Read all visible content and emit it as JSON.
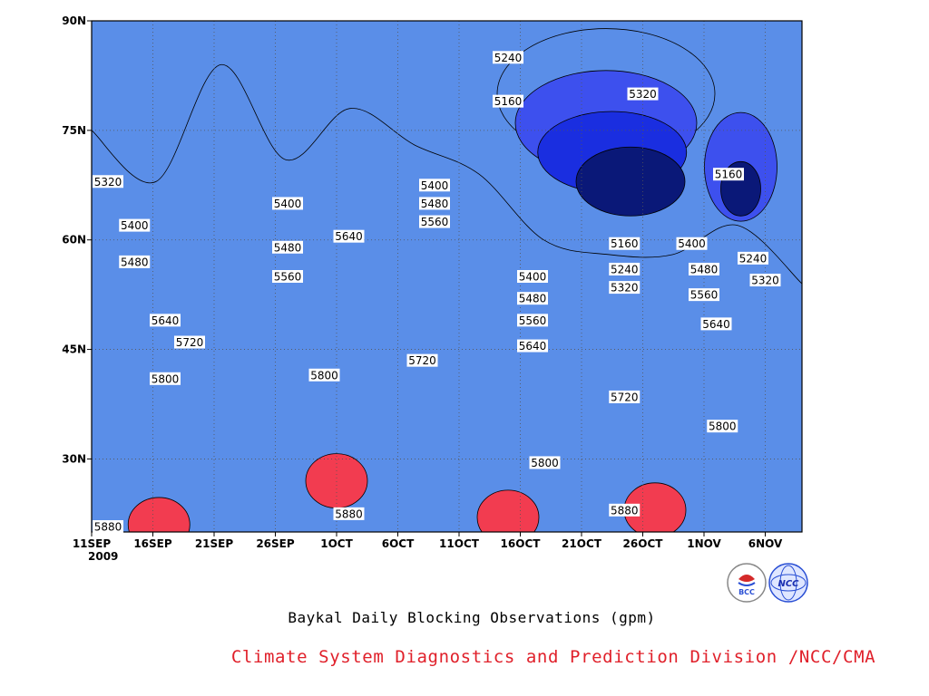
{
  "chart_data": {
    "type": "heatmap",
    "title": "Baykal Daily Blocking Observations (gpm)",
    "x_tick_labels": [
      "11SEP",
      "16SEP",
      "21SEP",
      "26SEP",
      "1OCT",
      "6OCT",
      "11OCT",
      "16OCT",
      "21OCT",
      "26OCT",
      "1NOV",
      "6NOV"
    ],
    "x_year_label": "2009",
    "y_tick_labels": [
      "30N",
      "45N",
      "60N",
      "75N",
      "90N"
    ],
    "y_ticks": [
      30,
      45,
      60,
      75,
      90
    ],
    "ylim": [
      20,
      90
    ],
    "x_range_days": [
      0,
      58
    ],
    "contour_levels": [
      5160,
      5240,
      5320,
      5400,
      5480,
      5560,
      5640,
      5720,
      5800,
      5880
    ],
    "level_colors": [
      "#0a1878",
      "#1a2ee0",
      "#3d50ee",
      "#5a8ee8",
      "#68c2ff",
      "#fbfb7c",
      "#fde0a2",
      "#fca068",
      "#fc7b48",
      "#f66c7e",
      "#f23c50"
    ],
    "isoline_latitudes": [
      {
        "level": 5880,
        "values": [
          20,
          20,
          20,
          20,
          20,
          20,
          20,
          20,
          20,
          20,
          20,
          20
        ]
      },
      {
        "level": 5800,
        "values": [
          42.5,
          41.5,
          40.5,
          41.5,
          41.5,
          40,
          31,
          31,
          29,
          32,
          36,
          26
        ]
      },
      {
        "level": 5720,
        "values": [
          48,
          46,
          45.5,
          47,
          49,
          47,
          44,
          42,
          40.5,
          40,
          43,
          34
        ]
      },
      {
        "level": 5640,
        "values": [
          57,
          52,
          51,
          53,
          61,
          60,
          51,
          47,
          45,
          45,
          49,
          40
        ]
      },
      {
        "level": 5560,
        "values": [
          62,
          55,
          56,
          55,
          64,
          63,
          56,
          50,
          48,
          48,
          51,
          43
        ]
      },
      {
        "level": 5480,
        "values": [
          64,
          54,
          77,
          59,
          68,
          64,
          58,
          53,
          50,
          50,
          53,
          46
        ]
      },
      {
        "level": 5400,
        "values": [
          66,
          61,
          79,
          63,
          73,
          68,
          63,
          55,
          53,
          51,
          59,
          47
        ]
      },
      {
        "level": 5320,
        "values": [
          75,
          68,
          84,
          71,
          78,
          73,
          69,
          60,
          58,
          58,
          62,
          54
        ]
      }
    ],
    "closed_regions": [
      {
        "level": "5880",
        "center": [
          5.5,
          21
        ],
        "value_label": "5880"
      },
      {
        "level": "5880",
        "center": [
          20,
          27
        ],
        "value_label": "5880"
      },
      {
        "level": "5880",
        "center": [
          34,
          22
        ],
        "value_label": "5880"
      },
      {
        "level": "5880",
        "center": [
          46,
          23
        ],
        "value_label": "5880"
      },
      {
        "level": "5160",
        "center": [
          44,
          68
        ],
        "value_label": "5160"
      },
      {
        "level": "5160",
        "center": [
          53,
          67
        ],
        "value_label": "5160"
      }
    ],
    "contour_labels": [
      {
        "text": "5320",
        "day": 1,
        "lat": 68
      },
      {
        "text": "5400",
        "day": 3.5,
        "lat": 62
      },
      {
        "text": "5480",
        "day": 3.5,
        "lat": 57
      },
      {
        "text": "5400",
        "day": 16,
        "lat": 65
      },
      {
        "text": "5480",
        "day": 16,
        "lat": 59
      },
      {
        "text": "5560",
        "day": 16,
        "lat": 55
      },
      {
        "text": "5640",
        "day": 21,
        "lat": 60.5
      },
      {
        "text": "5400",
        "day": 28,
        "lat": 67.5
      },
      {
        "text": "5480",
        "day": 28,
        "lat": 65
      },
      {
        "text": "5560",
        "day": 28,
        "lat": 62.5
      },
      {
        "text": "5240",
        "day": 34,
        "lat": 85
      },
      {
        "text": "5160",
        "day": 34,
        "lat": 79
      },
      {
        "text": "5320",
        "day": 45,
        "lat": 80
      },
      {
        "text": "5400",
        "day": 36,
        "lat": 55
      },
      {
        "text": "5480",
        "day": 36,
        "lat": 52
      },
      {
        "text": "5560",
        "day": 36,
        "lat": 49
      },
      {
        "text": "5640",
        "day": 36,
        "lat": 45.5
      },
      {
        "text": "5160",
        "day": 43.5,
        "lat": 59.5
      },
      {
        "text": "5240",
        "day": 43.5,
        "lat": 56
      },
      {
        "text": "5320",
        "day": 43.5,
        "lat": 53.5
      },
      {
        "text": "5400",
        "day": 49,
        "lat": 59.5
      },
      {
        "text": "5480",
        "day": 50,
        "lat": 56
      },
      {
        "text": "5560",
        "day": 50,
        "lat": 52.5
      },
      {
        "text": "5640",
        "day": 51,
        "lat": 48.5
      },
      {
        "text": "5160",
        "day": 52,
        "lat": 69
      },
      {
        "text": "5240",
        "day": 54,
        "lat": 57.5
      },
      {
        "text": "5320",
        "day": 55,
        "lat": 54.5
      },
      {
        "text": "5640",
        "day": 6,
        "lat": 49
      },
      {
        "text": "5720",
        "day": 8,
        "lat": 46
      },
      {
        "text": "5800",
        "day": 6,
        "lat": 41
      },
      {
        "text": "5800",
        "day": 19,
        "lat": 41.5
      },
      {
        "text": "5720",
        "day": 27,
        "lat": 43.5
      },
      {
        "text": "5720",
        "day": 43.5,
        "lat": 38.5
      },
      {
        "text": "5800",
        "day": 51.5,
        "lat": 34.5
      },
      {
        "text": "5800",
        "day": 37,
        "lat": 29.5
      },
      {
        "text": "5880",
        "day": 21,
        "lat": 22.5
      },
      {
        "text": "5880",
        "day": 43.5,
        "lat": 23
      },
      {
        "text": "5880",
        "day": 1,
        "lat": 20.5
      }
    ]
  },
  "credit": "Climate System Diagnostics and Prediction Division /NCC/CMA",
  "logos": {
    "left": "BCC",
    "right": "NCC"
  }
}
